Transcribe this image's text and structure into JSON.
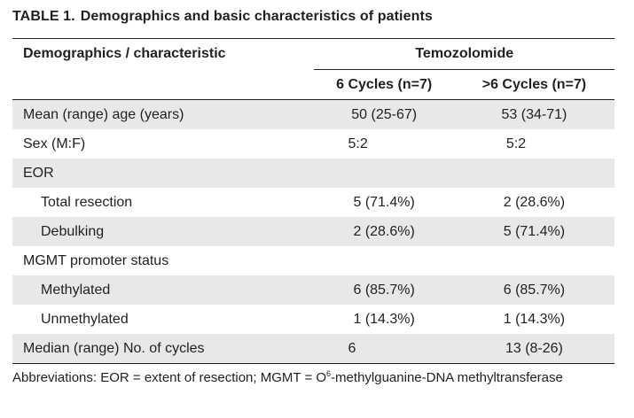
{
  "caption": {
    "label": "TABLE 1.",
    "title": "Demographics and basic characteristics of patients"
  },
  "table": {
    "header": {
      "row_label": "Demographics / characteristic",
      "group": "Temozolomide",
      "col1": "6 Cycles (n=7)",
      "col2": ">6 Cycles (n=7)"
    },
    "rows": [
      {
        "label": "Mean (range) age (years)",
        "v1": "50 (25-67)",
        "v2": "53 (34-71)",
        "indent": false,
        "shade": true
      },
      {
        "label": "Sex (M:F)",
        "v1": "5:2",
        "v2": "5:2",
        "indent": false,
        "shade": false
      },
      {
        "label": "EOR",
        "v1": "",
        "v2": "",
        "indent": false,
        "shade": true
      },
      {
        "label": "Total resection",
        "v1": "5 (71.4%)",
        "v2": "2 (28.6%)",
        "indent": true,
        "shade": false
      },
      {
        "label": "Debulking",
        "v1": "2 (28.6%)",
        "v2": "5 (71.4%)",
        "indent": true,
        "shade": true
      },
      {
        "label": "MGMT promoter status",
        "v1": "",
        "v2": "",
        "indent": false,
        "shade": false
      },
      {
        "label": "Methylated",
        "v1": "6 (85.7%)",
        "v2": "6 (85.7%)",
        "indent": true,
        "shade": true
      },
      {
        "label": "Unmethylated",
        "v1": "1 (14.3%)",
        "v2": "1 (14.3%)",
        "indent": true,
        "shade": false
      },
      {
        "label": "Median (range) No. of cycles",
        "v1": "6",
        "v2": "13 (8-26)",
        "indent": false,
        "shade": true
      }
    ]
  },
  "footnote": {
    "before": "Abbreviations: EOR = extent of resection; MGMT = O",
    "superscript": "6",
    "after": "-methylguanine-DNA methyltransferase"
  }
}
